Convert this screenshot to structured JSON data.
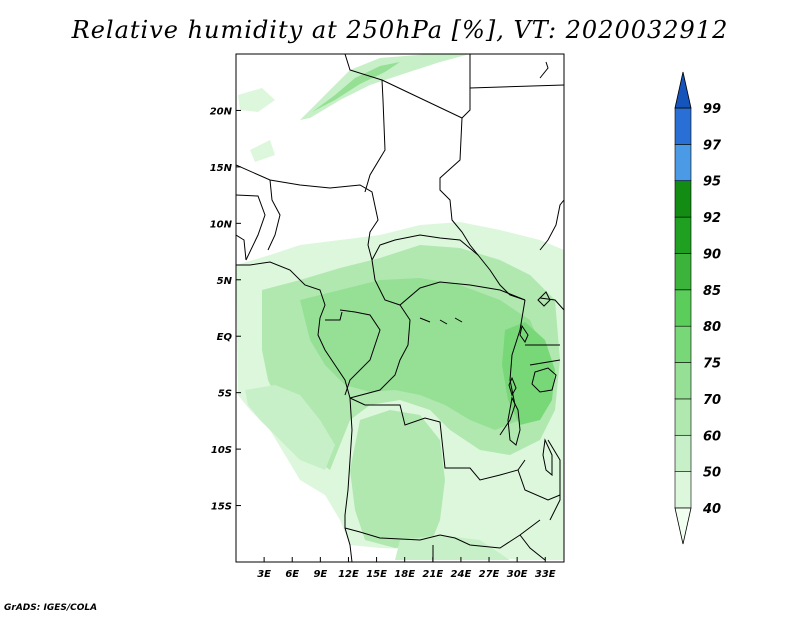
{
  "title": "Relative humidity at 250hPa [%], VT: 2020032912",
  "credit": "GrADS: IGES/COLA",
  "map": {
    "lon_range": [
      0,
      35
    ],
    "lat_range": [
      -20,
      25
    ],
    "lon_ticks": [
      "3E",
      "6E",
      "9E",
      "12E",
      "15E",
      "18E",
      "21E",
      "24E",
      "27E",
      "30E",
      "33E"
    ],
    "lat_ticks": [
      "20N",
      "15N",
      "10N",
      "5N",
      "EQ",
      "5S",
      "10S",
      "15S"
    ]
  },
  "colorbar": {
    "labels": [
      "40",
      "50",
      "60",
      "70",
      "75",
      "80",
      "85",
      "90",
      "92",
      "95",
      "97",
      "99"
    ],
    "colors": [
      "#f0fff0",
      "#ddf7dd",
      "#c8f0c8",
      "#b0e8b0",
      "#96e096",
      "#78d878",
      "#5acd5a",
      "#3cb43c",
      "#20a020",
      "#138c13",
      "#4a9ae6",
      "#2a6fd6",
      "#1454bb"
    ]
  }
}
